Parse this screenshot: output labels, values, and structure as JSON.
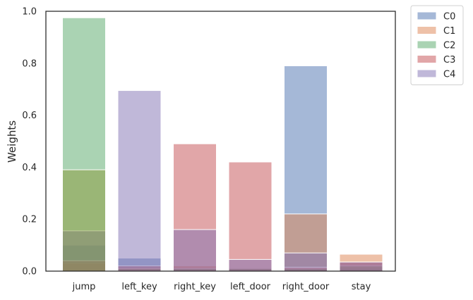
{
  "chart_data": {
    "type": "bar",
    "title": "",
    "xlabel": "",
    "ylabel": "Weights",
    "ylim": [
      0,
      1.0
    ],
    "yticks": [
      "0.0",
      "0.2",
      "0.4",
      "0.6",
      "0.8",
      "1.0"
    ],
    "grid": false,
    "legend_position": "outside top-right",
    "categories": [
      "jump",
      "left_key",
      "right_key",
      "left_door",
      "right_door",
      "stay"
    ],
    "series": [
      {
        "name": "C0",
        "color": "#4c72b0",
        "values": [
          0.1,
          0.05,
          0.01,
          0.01,
          0.79,
          0.01
        ]
      },
      {
        "name": "C1",
        "color": "#dd8452",
        "values": [
          0.03,
          0.01,
          0.02,
          0.01,
          0.22,
          0.065
        ]
      },
      {
        "name": "C2",
        "color": "#55a868",
        "values": [
          0.975,
          0.01,
          0.01,
          0.01,
          0.01,
          0.02
        ]
      },
      {
        "name": "C3",
        "color": "#c44e52",
        "values": [
          0.04,
          0.02,
          0.49,
          0.42,
          0.015,
          0.035
        ]
      },
      {
        "name": "C4",
        "color": "#8172b3",
        "values": [
          0.155,
          0.695,
          0.16,
          0.045,
          0.07,
          0.035
        ]
      }
    ],
    "overlay_bars": [
      {
        "category": "jump",
        "value": 0.39,
        "color": "#8a9a3a"
      }
    ]
  }
}
